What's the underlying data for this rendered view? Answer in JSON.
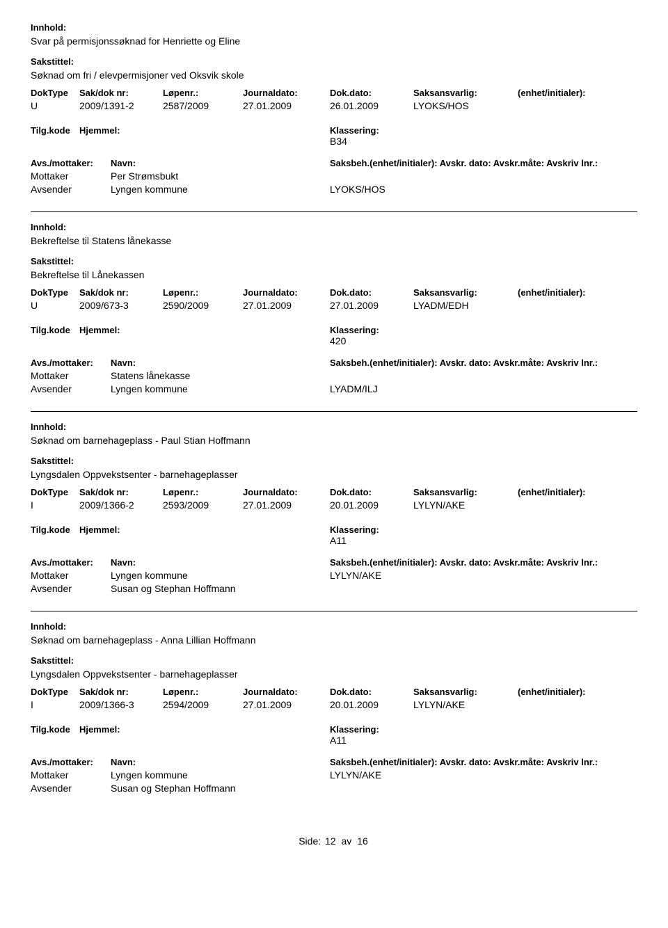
{
  "labels": {
    "innhold": "Innhold:",
    "sakstittel": "Sakstittel:",
    "doktype": "DokType",
    "sakdoknr": "Sak/dok nr:",
    "lopenr": "Løpenr.:",
    "journaldato": "Journaldato:",
    "dokdato": "Dok.dato:",
    "saksansvarlig": "Saksansvarlig:",
    "enhet": "(enhet/initialer):",
    "tilgkode": "Tilg.kode",
    "hjemmel": "Hjemmel:",
    "klassering": "Klassering:",
    "avsmottaker": "Avs./mottaker:",
    "navn": "Navn:",
    "saksbeh": "Saksbeh.",
    "enhet2": "(enhet/initialer):",
    "avskr_dato": "Avskr. dato:",
    "avskr_mate": "Avskr.måte:",
    "avskriv_lnr": "Avskriv lnr.:"
  },
  "footer": {
    "side": "Side:",
    "page": "12",
    "av": "av",
    "total": "16"
  },
  "entries": [
    {
      "innhold": "Svar på permisjonssøknad for Henriette og Eline",
      "sakstittel": "Søknad om fri / elevpermisjoner ved Oksvik skole",
      "doktype": "U",
      "sakdok": "2009/1391-2",
      "lopenr": "2587/2009",
      "jdato": "27.01.2009",
      "ddato": "26.01.2009",
      "saksansvarlig": "LYOKS/HOS",
      "klasseringsverdi": "B34",
      "parties": [
        {
          "role": "Mottaker",
          "name": "Per Strømsbukt",
          "saksbeh": ""
        },
        {
          "role": "Avsender",
          "name": "Lyngen kommune",
          "saksbeh": "LYOKS/HOS"
        }
      ]
    },
    {
      "innhold": "Bekreftelse til Statens lånekasse",
      "sakstittel": "Bekreftelse til Lånekassen",
      "doktype": "U",
      "sakdok": "2009/673-3",
      "lopenr": "2590/2009",
      "jdato": "27.01.2009",
      "ddato": "27.01.2009",
      "saksansvarlig": "LYADM/EDH",
      "klasseringsverdi": "420",
      "parties": [
        {
          "role": "Mottaker",
          "name": "Statens lånekasse",
          "saksbeh": ""
        },
        {
          "role": "Avsender",
          "name": "Lyngen kommune",
          "saksbeh": "LYADM/ILJ"
        }
      ]
    },
    {
      "innhold": "Søknad om barnehageplass - Paul Stian Hoffmann",
      "sakstittel": "Lyngsdalen Oppvekstsenter - barnehageplasser",
      "doktype": "I",
      "sakdok": "2009/1366-2",
      "lopenr": "2593/2009",
      "jdato": "27.01.2009",
      "ddato": "20.01.2009",
      "saksansvarlig": "LYLYN/AKE",
      "klasseringsverdi": "A11",
      "parties": [
        {
          "role": "Mottaker",
          "name": "Lyngen kommune",
          "saksbeh": "LYLYN/AKE"
        },
        {
          "role": "Avsender",
          "name": "Susan og Stephan Hoffmann",
          "saksbeh": ""
        }
      ]
    },
    {
      "innhold": "Søknad om barnehageplass - Anna Lillian Hoffmann",
      "sakstittel": "Lyngsdalen Oppvekstsenter - barnehageplasser",
      "doktype": "I",
      "sakdok": "2009/1366-3",
      "lopenr": "2594/2009",
      "jdato": "27.01.2009",
      "ddato": "20.01.2009",
      "saksansvarlig": "LYLYN/AKE",
      "klasseringsverdi": "A11",
      "parties": [
        {
          "role": "Mottaker",
          "name": "Lyngen kommune",
          "saksbeh": "LYLYN/AKE"
        },
        {
          "role": "Avsender",
          "name": "Susan og Stephan Hoffmann",
          "saksbeh": ""
        }
      ]
    }
  ]
}
